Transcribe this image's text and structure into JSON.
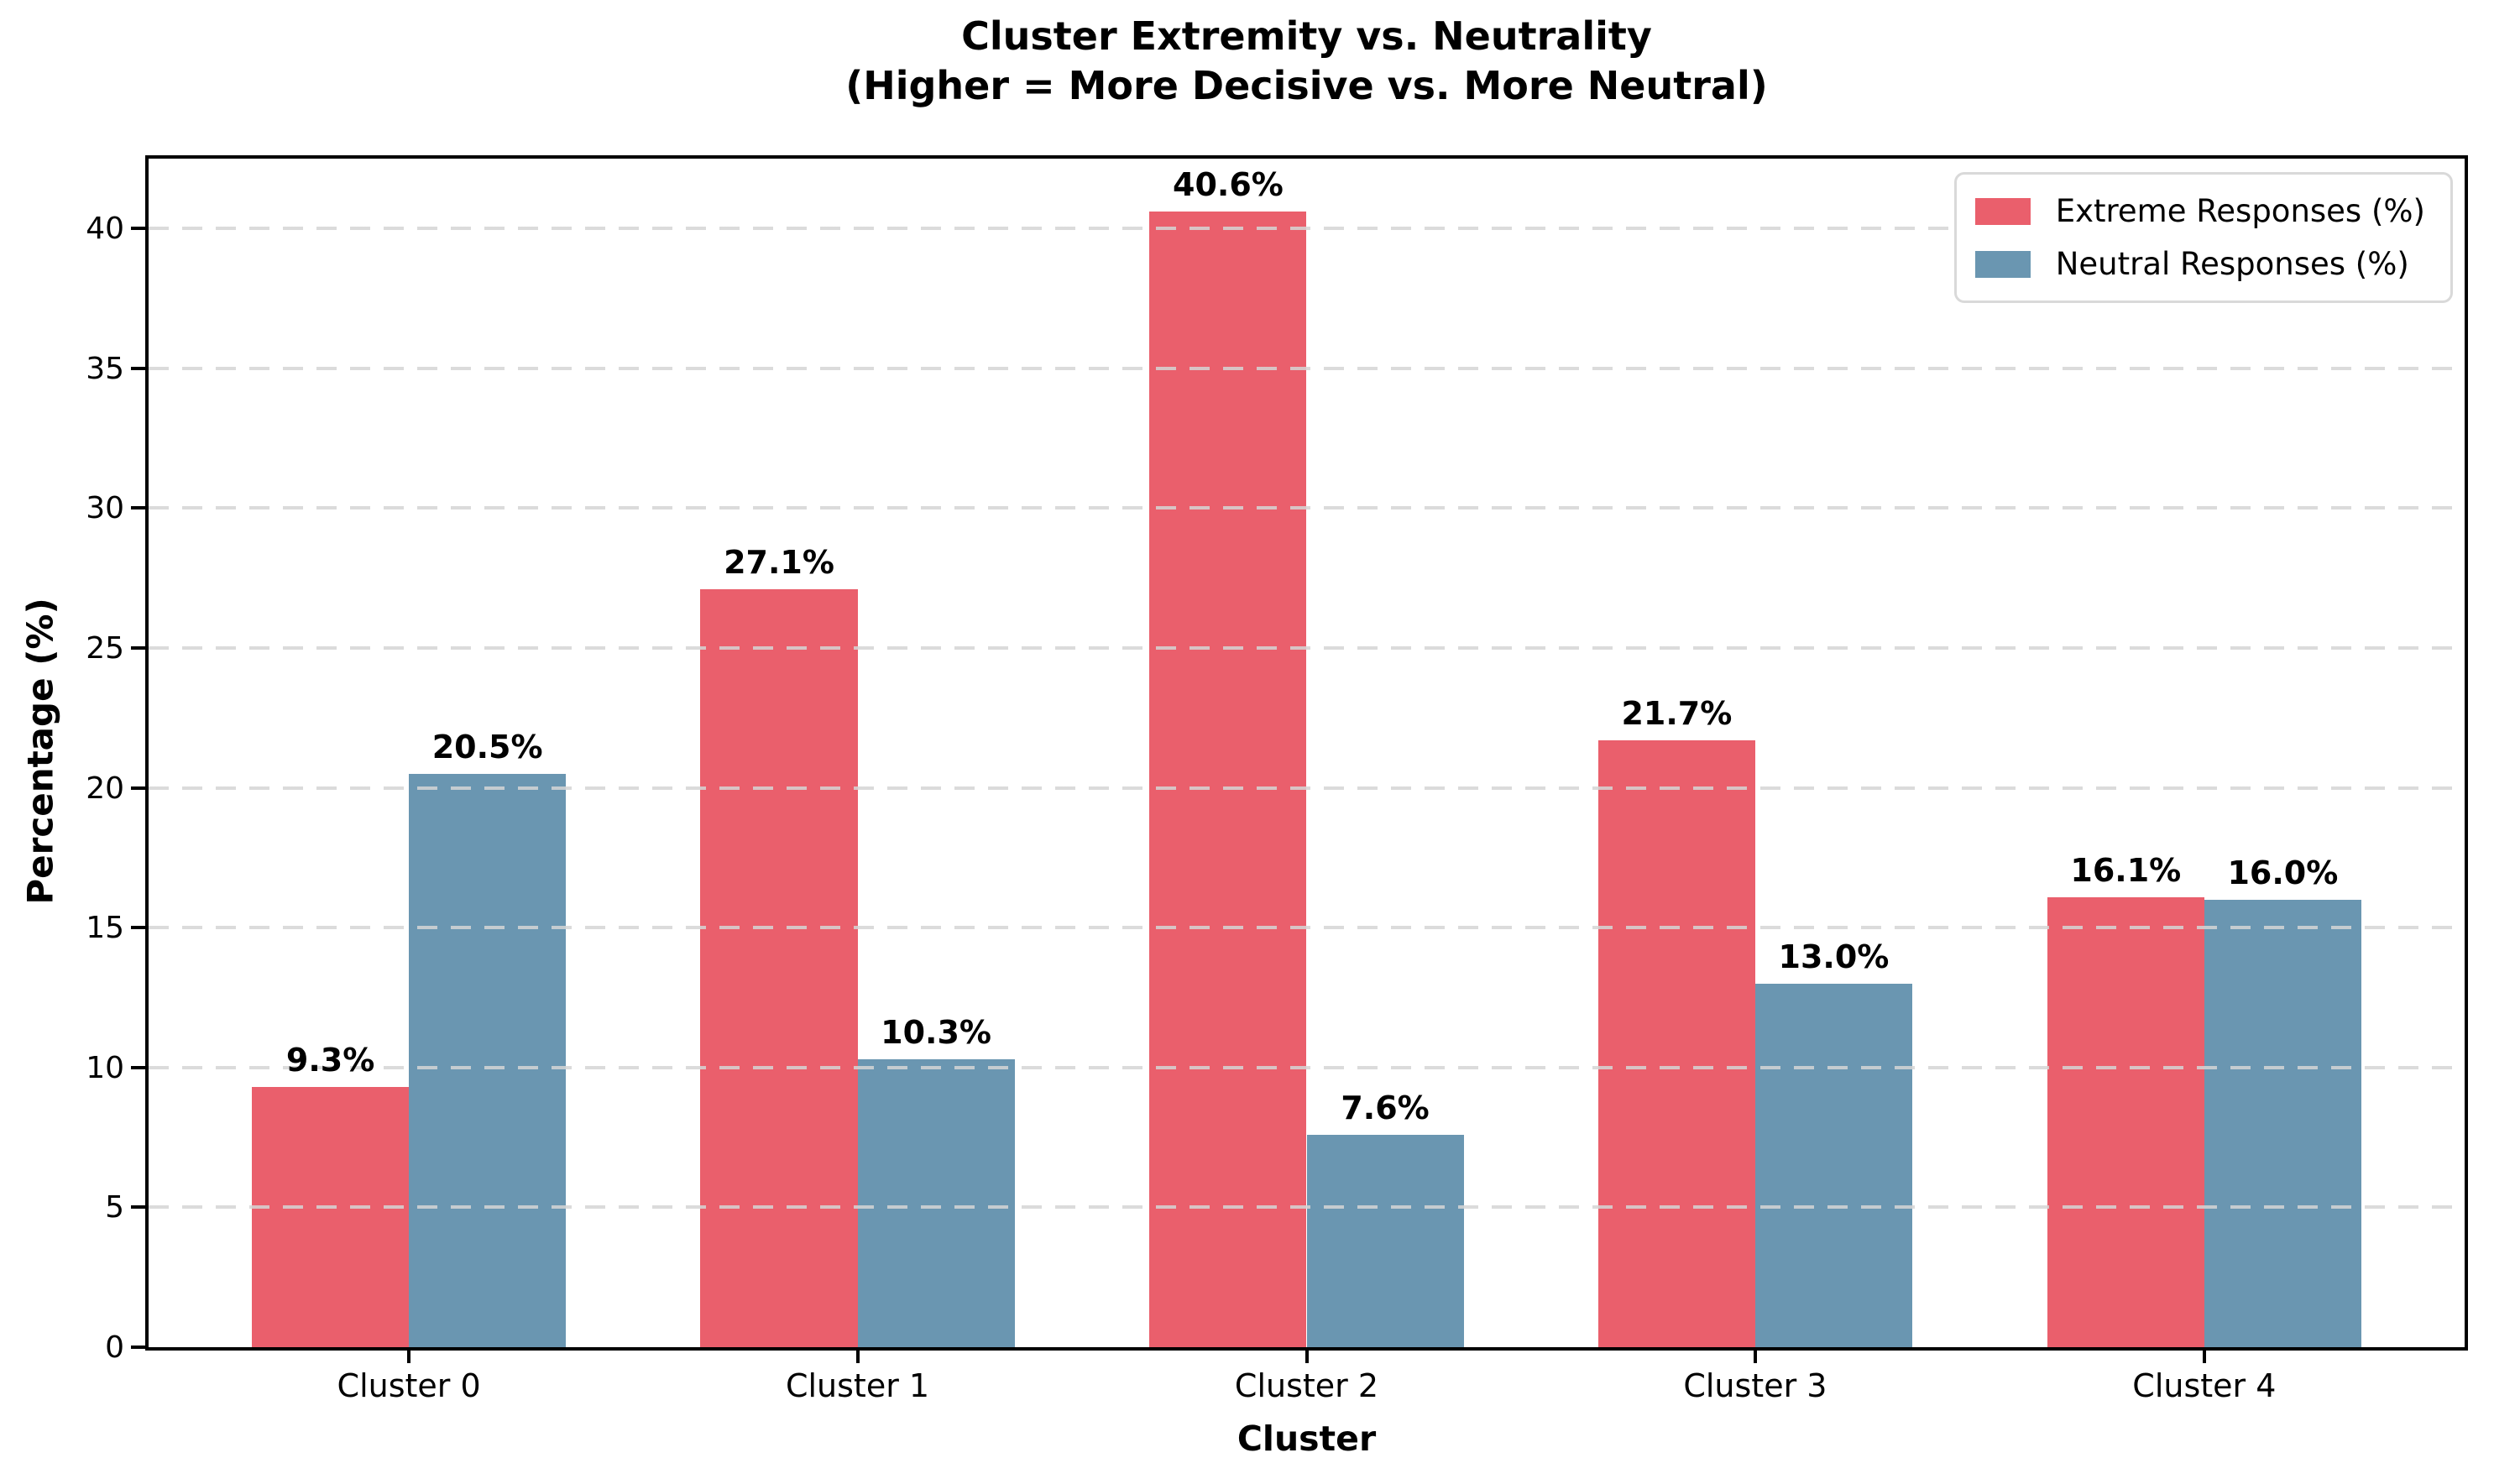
{
  "figure": {
    "title_line1": "Cluster Extremity vs. Neutrality",
    "title_line2": "(Higher = More Decisive vs. More Neutral)"
  },
  "chart_data": {
    "type": "bar",
    "title": "Cluster Extremity vs. Neutrality (Higher = More Decisive vs. More Neutral)",
    "categories": [
      "Cluster 0",
      "Cluster 1",
      "Cluster 2",
      "Cluster 3",
      "Cluster 4"
    ],
    "series": [
      {
        "name": "Extreme Responses (%)",
        "color": "#EA5F6C",
        "values": [
          9.3,
          27.1,
          40.6,
          21.7,
          16.1
        ],
        "labels": [
          "9.3%",
          "27.1%",
          "40.6%",
          "21.7%",
          "16.1%"
        ]
      },
      {
        "name": "Neutral Responses (%)",
        "color": "#6A96B1",
        "values": [
          20.5,
          10.3,
          7.6,
          13.0,
          16.0
        ],
        "labels": [
          "20.5%",
          "10.3%",
          "7.6%",
          "13.0%",
          "16.0%"
        ]
      }
    ],
    "xlabel": "Cluster",
    "ylabel": "Percentage (%)",
    "ylim": [
      0,
      42.5
    ],
    "yticks": [
      0,
      5,
      10,
      15,
      20,
      25,
      30,
      35,
      40
    ],
    "grid": "horizontal-dashed",
    "legend_position": "upper-right",
    "colors": {
      "grid": "#D5D5D5",
      "spine": "#000000",
      "background": "#FFFFFF"
    }
  }
}
